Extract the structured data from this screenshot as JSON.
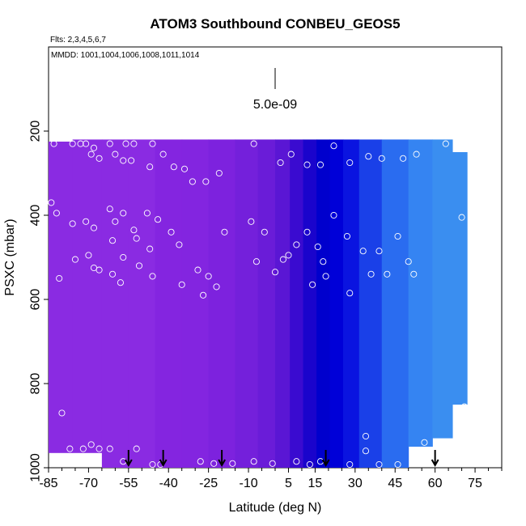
{
  "chart_data": {
    "type": "heatmap",
    "title": "ATOM3 Southbound CONBEU_GEOS5",
    "flights_note": "Flts: 2,3,4,5,6,7",
    "dates_note": "MMDD: 1001,1004,1006,1008,1011,1014",
    "scale_label": "5.0e-09",
    "xlabel": "Latitude (deg N)",
    "ylabel": "PSXC (mbar)",
    "xlim": [
      -85,
      85
    ],
    "ylim": [
      1000,
      0
    ],
    "x_ticks": [
      "-85",
      "-70",
      "-55",
      "-40",
      "-25",
      "-10",
      "5",
      "15",
      "30",
      "45",
      "60",
      "75"
    ],
    "x_tick_values": [
      -85,
      -70,
      -55,
      -40,
      -25,
      -10,
      5,
      15,
      30,
      45,
      60,
      75
    ],
    "y_ticks": [
      "200",
      "400",
      "600",
      "800",
      "1000"
    ],
    "y_tick_values": [
      200,
      400,
      600,
      800,
      1000
    ],
    "colors": {
      "south_purple": "#8a2be2",
      "mid_purple": "#6a1fd8",
      "core_blue": "#0000cd",
      "north_light_blue": "#3a8ef0",
      "upper_north_blue": "#1a3ad8",
      "marker": "#ffffff"
    },
    "field_columns": [
      {
        "lat": -82,
        "top": 225,
        "bottom": 965,
        "color": "#8a2be2"
      },
      {
        "lat": -70,
        "top": 220,
        "bottom": 965,
        "color": "#8a2be2"
      },
      {
        "lat": -60,
        "top": 220,
        "bottom": 1000,
        "color": "#8a2be2"
      },
      {
        "lat": -50,
        "top": 220,
        "bottom": 1000,
        "color": "#8a2be2"
      },
      {
        "lat": -40,
        "top": 220,
        "bottom": 1000,
        "color": "#8425e0"
      },
      {
        "lat": -30,
        "top": 220,
        "bottom": 1000,
        "color": "#8325e0"
      },
      {
        "lat": -20,
        "top": 220,
        "bottom": 1000,
        "color": "#7d22de"
      },
      {
        "lat": -10,
        "top": 220,
        "bottom": 1000,
        "color": "#7420db"
      },
      {
        "lat": -3,
        "top": 220,
        "bottom": 1000,
        "color": "#6a1cd8"
      },
      {
        "lat": 3,
        "top": 220,
        "bottom": 1000,
        "color": "#5a16d4"
      },
      {
        "lat": 8,
        "top": 220,
        "bottom": 1000,
        "color": "#3a0bd0"
      },
      {
        "lat": 13,
        "top": 220,
        "bottom": 1000,
        "color": "#1a04cc"
      },
      {
        "lat": 18,
        "top": 220,
        "bottom": 1000,
        "color": "#0000cd"
      },
      {
        "lat": 23,
        "top": 220,
        "bottom": 1000,
        "color": "#0000d8"
      },
      {
        "lat": 28,
        "top": 220,
        "bottom": 1000,
        "color": "#0a14e0"
      },
      {
        "lat": 35,
        "top": 220,
        "bottom": 1000,
        "color": "#1a40e8"
      },
      {
        "lat": 45,
        "top": 220,
        "bottom": 1000,
        "color": "#2a6cf0"
      },
      {
        "lat": 55,
        "top": 220,
        "bottom": 950,
        "color": "#3584f2"
      },
      {
        "lat": 63,
        "top": 220,
        "bottom": 930,
        "color": "#3a8ef0"
      },
      {
        "lat": 70,
        "top": 250,
        "bottom": 850,
        "color": "#3a8ef0"
      }
    ],
    "points": [
      {
        "lat": -67,
        "p": 195
      },
      {
        "lat": -62,
        "p": 190
      },
      {
        "lat": -57,
        "p": 195
      },
      {
        "lat": -52,
        "p": 190
      },
      {
        "lat": -48,
        "p": 190
      },
      {
        "lat": -83,
        "p": 230
      },
      {
        "lat": -76,
        "p": 230
      },
      {
        "lat": -73,
        "p": 230
      },
      {
        "lat": -71,
        "p": 230
      },
      {
        "lat": -68,
        "p": 240
      },
      {
        "lat": -62,
        "p": 230
      },
      {
        "lat": -56,
        "p": 230
      },
      {
        "lat": -53,
        "p": 230
      },
      {
        "lat": -46,
        "p": 230
      },
      {
        "lat": -69,
        "p": 255
      },
      {
        "lat": -66,
        "p": 265
      },
      {
        "lat": -60,
        "p": 255
      },
      {
        "lat": -57,
        "p": 270
      },
      {
        "lat": -54,
        "p": 270
      },
      {
        "lat": -47,
        "p": 285
      },
      {
        "lat": -42,
        "p": 255
      },
      {
        "lat": -38,
        "p": 285
      },
      {
        "lat": -34,
        "p": 290
      },
      {
        "lat": -31,
        "p": 320
      },
      {
        "lat": -26,
        "p": 320
      },
      {
        "lat": -21,
        "p": 300
      },
      {
        "lat": -14,
        "p": 200
      },
      {
        "lat": -8,
        "p": 230
      },
      {
        "lat": 2,
        "p": 275
      },
      {
        "lat": 6,
        "p": 255
      },
      {
        "lat": 12,
        "p": 280
      },
      {
        "lat": 17,
        "p": 280
      },
      {
        "lat": 22,
        "p": 235
      },
      {
        "lat": 28,
        "p": 275
      },
      {
        "lat": 35,
        "p": 260
      },
      {
        "lat": 40,
        "p": 265
      },
      {
        "lat": 48,
        "p": 265
      },
      {
        "lat": 53,
        "p": 255
      },
      {
        "lat": 64,
        "p": 230
      },
      {
        "lat": 68,
        "p": 230
      },
      {
        "lat": -84,
        "p": 370
      },
      {
        "lat": -82,
        "p": 395
      },
      {
        "lat": -76,
        "p": 420
      },
      {
        "lat": -71,
        "p": 415
      },
      {
        "lat": -68,
        "p": 430
      },
      {
        "lat": -62,
        "p": 385
      },
      {
        "lat": -57,
        "p": 395
      },
      {
        "lat": -60,
        "p": 415
      },
      {
        "lat": -53,
        "p": 435
      },
      {
        "lat": -48,
        "p": 395
      },
      {
        "lat": -44,
        "p": 410
      },
      {
        "lat": -39,
        "p": 440
      },
      {
        "lat": -61,
        "p": 460
      },
      {
        "lat": -52,
        "p": 455
      },
      {
        "lat": -47,
        "p": 480
      },
      {
        "lat": -36,
        "p": 470
      },
      {
        "lat": -75,
        "p": 505
      },
      {
        "lat": -70,
        "p": 495
      },
      {
        "lat": -68,
        "p": 525
      },
      {
        "lat": -66,
        "p": 530
      },
      {
        "lat": -57,
        "p": 500
      },
      {
        "lat": -51,
        "p": 520
      },
      {
        "lat": -61,
        "p": 540
      },
      {
        "lat": -58,
        "p": 560
      },
      {
        "lat": -46,
        "p": 545
      },
      {
        "lat": -81,
        "p": 550
      },
      {
        "lat": -35,
        "p": 565
      },
      {
        "lat": -29,
        "p": 530
      },
      {
        "lat": -25,
        "p": 545
      },
      {
        "lat": -22,
        "p": 570
      },
      {
        "lat": -27,
        "p": 590
      },
      {
        "lat": -19,
        "p": 440
      },
      {
        "lat": -9,
        "p": 415
      },
      {
        "lat": -7,
        "p": 510
      },
      {
        "lat": -4,
        "p": 440
      },
      {
        "lat": 0,
        "p": 535
      },
      {
        "lat": 3,
        "p": 505
      },
      {
        "lat": 5,
        "p": 495
      },
      {
        "lat": 8,
        "p": 470
      },
      {
        "lat": 12,
        "p": 440
      },
      {
        "lat": 16,
        "p": 475
      },
      {
        "lat": 14,
        "p": 565
      },
      {
        "lat": 18,
        "p": 510
      },
      {
        "lat": 19,
        "p": 545
      },
      {
        "lat": 22,
        "p": 400
      },
      {
        "lat": 27,
        "p": 450
      },
      {
        "lat": 28,
        "p": 585
      },
      {
        "lat": 33,
        "p": 485
      },
      {
        "lat": 36,
        "p": 540
      },
      {
        "lat": 39,
        "p": 485
      },
      {
        "lat": 42,
        "p": 540
      },
      {
        "lat": 46,
        "p": 450
      },
      {
        "lat": 50,
        "p": 510
      },
      {
        "lat": 52,
        "p": 540
      },
      {
        "lat": 70,
        "p": 405
      },
      {
        "lat": -80,
        "p": 870
      },
      {
        "lat": -77,
        "p": 955
      },
      {
        "lat": -72,
        "p": 955
      },
      {
        "lat": -69,
        "p": 945
      },
      {
        "lat": -66,
        "p": 955
      },
      {
        "lat": -62,
        "p": 955
      },
      {
        "lat": -57,
        "p": 985
      },
      {
        "lat": -52,
        "p": 955
      },
      {
        "lat": -46,
        "p": 995
      },
      {
        "lat": -43,
        "p": 1000
      },
      {
        "lat": -28,
        "p": 985
      },
      {
        "lat": -23,
        "p": 990
      },
      {
        "lat": -16,
        "p": 990
      },
      {
        "lat": -8,
        "p": 985
      },
      {
        "lat": -1,
        "p": 990
      },
      {
        "lat": 8,
        "p": 985
      },
      {
        "lat": 13,
        "p": 995
      },
      {
        "lat": 17,
        "p": 985
      },
      {
        "lat": 28,
        "p": 1005
      },
      {
        "lat": 34,
        "p": 960
      },
      {
        "lat": 34,
        "p": 925
      },
      {
        "lat": 39,
        "p": 1005
      },
      {
        "lat": 46,
        "p": 1005
      },
      {
        "lat": 56,
        "p": 940
      },
      {
        "lat": 71,
        "p": 855
      }
    ],
    "arrows_lat": [
      -55,
      -42,
      -20,
      19,
      60
    ],
    "scale_bar": {
      "lat": 0,
      "p_top": 50,
      "p_bottom": 100
    }
  }
}
